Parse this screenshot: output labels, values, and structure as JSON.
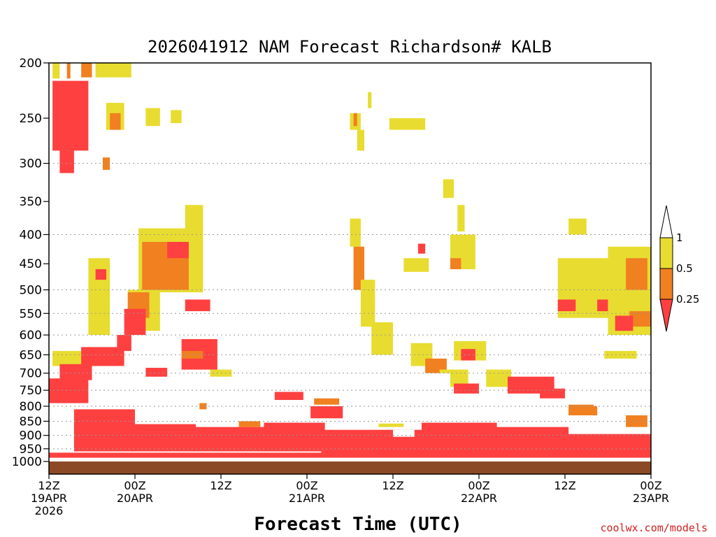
{
  "chart_data": {
    "type": "heatmap",
    "title": "2026041912 NAM Forecast Richardson# KALB",
    "xlabel": "Forecast Time (UTC)",
    "ylabel": "",
    "credit": "coolwx.com/models",
    "y_scale": "log-pressure",
    "ylim": [
      1000,
      200
    ],
    "y_ticks": [
      200,
      250,
      300,
      350,
      400,
      450,
      500,
      550,
      600,
      650,
      700,
      750,
      800,
      850,
      900,
      950,
      1000
    ],
    "grid_levels": [
      300,
      400,
      500,
      550,
      600,
      650,
      700,
      750,
      800,
      850,
      900,
      950
    ],
    "xlim_hours": [
      0,
      84
    ],
    "x_ticks": [
      {
        "hour": 0,
        "line1": "12Z",
        "line2": "19APR",
        "line3": "2026"
      },
      {
        "hour": 12,
        "line1": "00Z",
        "line2": "20APR",
        "line3": ""
      },
      {
        "hour": 24,
        "line1": "12Z",
        "line2": "",
        "line3": ""
      },
      {
        "hour": 36,
        "line1": "00Z",
        "line2": "21APR",
        "line3": ""
      },
      {
        "hour": 48,
        "line1": "12Z",
        "line2": "",
        "line3": ""
      },
      {
        "hour": 60,
        "line1": "00Z",
        "line2": "22APR",
        "line3": ""
      },
      {
        "hour": 72,
        "line1": "12Z",
        "line2": "",
        "line3": ""
      },
      {
        "hour": 84,
        "line1": "00Z",
        "line2": "23APR",
        "line3": ""
      }
    ],
    "legend": {
      "placement": "right",
      "thresholds": [
        "1",
        "0.5",
        "0.25"
      ],
      "colors": {
        "below_025": "#ff4040",
        "band_025_05": "#f08020",
        "band_05_1": "#e8dc30",
        "above_1": "#ffffff"
      }
    },
    "surface_color": "#8b4a25",
    "regions": [
      {
        "h0": 0.5,
        "h1": 5.5,
        "p0": 215,
        "p1": 285,
        "cls": "r"
      },
      {
        "h0": 1.5,
        "h1": 3.5,
        "p0": 285,
        "p1": 312,
        "cls": "r"
      },
      {
        "h0": 0.5,
        "h1": 1.5,
        "p0": 200,
        "p1": 213,
        "cls": "y"
      },
      {
        "h0": 2.5,
        "h1": 3.0,
        "p0": 200,
        "p1": 213,
        "cls": "o"
      },
      {
        "h0": 4.5,
        "h1": 6.0,
        "p0": 200,
        "p1": 212,
        "cls": "o"
      },
      {
        "h0": 6.5,
        "h1": 11.5,
        "p0": 200,
        "p1": 212,
        "cls": "y"
      },
      {
        "h0": 8.0,
        "h1": 10.5,
        "p0": 235,
        "p1": 262,
        "cls": "y"
      },
      {
        "h0": 8.5,
        "h1": 10.0,
        "p0": 245,
        "p1": 262,
        "cls": "o"
      },
      {
        "h0": 13.5,
        "h1": 15.5,
        "p0": 240,
        "p1": 258,
        "cls": "y"
      },
      {
        "h0": 17.0,
        "h1": 18.5,
        "p0": 242,
        "p1": 255,
        "cls": "y"
      },
      {
        "h0": 7.5,
        "h1": 8.5,
        "p0": 293,
        "p1": 308,
        "cls": "o"
      },
      {
        "h0": 19.0,
        "h1": 21.5,
        "p0": 355,
        "p1": 400,
        "cls": "y"
      },
      {
        "h0": 12.5,
        "h1": 21.5,
        "p0": 390,
        "p1": 505,
        "cls": "y"
      },
      {
        "h0": 13.0,
        "h1": 19.5,
        "p0": 412,
        "p1": 500,
        "cls": "o"
      },
      {
        "h0": 16.5,
        "h1": 19.5,
        "p0": 412,
        "p1": 440,
        "cls": "r"
      },
      {
        "h0": 11.0,
        "h1": 15.5,
        "p0": 500,
        "p1": 590,
        "cls": "y"
      },
      {
        "h0": 11.0,
        "h1": 14.0,
        "p0": 505,
        "p1": 560,
        "cls": "o"
      },
      {
        "h0": 10.5,
        "h1": 13.5,
        "p0": 540,
        "p1": 600,
        "cls": "r"
      },
      {
        "h0": 19.0,
        "h1": 22.5,
        "p0": 520,
        "p1": 545,
        "cls": "r"
      },
      {
        "h0": 5.5,
        "h1": 8.5,
        "p0": 440,
        "p1": 600,
        "cls": "y"
      },
      {
        "h0": 6.5,
        "h1": 8.0,
        "p0": 460,
        "p1": 480,
        "cls": "r"
      },
      {
        "h0": 0.5,
        "h1": 5.5,
        "p0": 640,
        "p1": 680,
        "cls": "y"
      },
      {
        "h0": 1.5,
        "h1": 6.0,
        "p0": 675,
        "p1": 720,
        "cls": "r"
      },
      {
        "h0": 4.5,
        "h1": 10.5,
        "p0": 630,
        "p1": 680,
        "cls": "r"
      },
      {
        "h0": 9.5,
        "h1": 11.5,
        "p0": 600,
        "p1": 640,
        "cls": "r"
      },
      {
        "h0": 0.0,
        "h1": 5.5,
        "p0": 715,
        "p1": 790,
        "cls": "r"
      },
      {
        "h0": 18.5,
        "h1": 23.5,
        "p0": 610,
        "p1": 690,
        "cls": "r"
      },
      {
        "h0": 18.5,
        "h1": 21.5,
        "p0": 640,
        "p1": 660,
        "cls": "o"
      },
      {
        "h0": 22.5,
        "h1": 25.5,
        "p0": 690,
        "p1": 710,
        "cls": "y"
      },
      {
        "h0": 13.5,
        "h1": 16.5,
        "p0": 685,
        "p1": 710,
        "cls": "r"
      },
      {
        "h0": 3.5,
        "h1": 12.0,
        "p0": 810,
        "p1": 960,
        "cls": "r"
      },
      {
        "h0": 11.5,
        "h1": 20.5,
        "p0": 860,
        "p1": 960,
        "cls": "r"
      },
      {
        "h0": 20.0,
        "h1": 30.5,
        "p0": 870,
        "p1": 960,
        "cls": "r"
      },
      {
        "h0": 30.0,
        "h1": 38.5,
        "p0": 855,
        "p1": 960,
        "cls": "r"
      },
      {
        "h0": 36.5,
        "h1": 41.0,
        "p0": 800,
        "p1": 840,
        "cls": "r"
      },
      {
        "h0": 37.0,
        "h1": 40.5,
        "p0": 775,
        "p1": 795,
        "cls": "o"
      },
      {
        "h0": 31.5,
        "h1": 35.5,
        "p0": 755,
        "p1": 780,
        "cls": "r"
      },
      {
        "h0": 38.0,
        "h1": 52.5,
        "p0": 880,
        "p1": 975,
        "cls": "r"
      },
      {
        "h0": 52.0,
        "h1": 62.5,
        "p0": 855,
        "p1": 975,
        "cls": "r"
      },
      {
        "h0": 62.0,
        "h1": 72.5,
        "p0": 870,
        "p1": 975,
        "cls": "r"
      },
      {
        "h0": 72.0,
        "h1": 84.0,
        "p0": 895,
        "p1": 975,
        "cls": "r"
      },
      {
        "h0": 0.0,
        "h1": 84.0,
        "p0": 965,
        "p1": 985,
        "cls": "r"
      },
      {
        "h0": 21.0,
        "h1": 26.0,
        "p0": 790,
        "p1": 810,
        "cls": "o"
      },
      {
        "h0": 26.5,
        "h1": 29.5,
        "p0": 840,
        "p1": 870,
        "cls": "o"
      },
      {
        "h0": 46.0,
        "h1": 49.5,
        "p0": 858,
        "p1": 870,
        "cls": "y"
      },
      {
        "h0": 66.0,
        "h1": 70.5,
        "p0": 820,
        "p1": 850,
        "cls": "r"
      },
      {
        "h0": 72.5,
        "h1": 76.5,
        "p0": 795,
        "p1": 830,
        "cls": "o"
      },
      {
        "h0": 80.5,
        "h1": 83.5,
        "p0": 830,
        "p1": 870,
        "cls": "o"
      },
      {
        "h0": 42.0,
        "h1": 43.5,
        "p0": 375,
        "p1": 420,
        "cls": "y"
      },
      {
        "h0": 42.5,
        "h1": 44.0,
        "p0": 420,
        "p1": 500,
        "cls": "o"
      },
      {
        "h0": 43.5,
        "h1": 45.5,
        "p0": 480,
        "p1": 580,
        "cls": "y"
      },
      {
        "h0": 45.0,
        "h1": 48.0,
        "p0": 570,
        "p1": 650,
        "cls": "y"
      },
      {
        "h0": 50.5,
        "h1": 53.5,
        "p0": 620,
        "p1": 680,
        "cls": "y"
      },
      {
        "h0": 52.5,
        "h1": 55.5,
        "p0": 660,
        "p1": 700,
        "cls": "o"
      },
      {
        "h0": 54.5,
        "h1": 58.5,
        "p0": 690,
        "p1": 740,
        "cls": "y"
      },
      {
        "h0": 56.5,
        "h1": 60.0,
        "p0": 730,
        "p1": 760,
        "cls": "r"
      },
      {
        "h0": 56.5,
        "h1": 61.0,
        "p0": 615,
        "p1": 665,
        "cls": "y"
      },
      {
        "h0": 57.5,
        "h1": 59.5,
        "p0": 635,
        "p1": 665,
        "cls": "r"
      },
      {
        "h0": 61.0,
        "h1": 64.5,
        "p0": 690,
        "p1": 740,
        "cls": "y"
      },
      {
        "h0": 64.0,
        "h1": 70.5,
        "p0": 710,
        "p1": 760,
        "cls": "r"
      },
      {
        "h0": 68.5,
        "h1": 72.0,
        "p0": 745,
        "p1": 775,
        "cls": "r"
      },
      {
        "h0": 47.5,
        "h1": 52.5,
        "p0": 250,
        "p1": 262,
        "cls": "y"
      },
      {
        "h0": 42.0,
        "h1": 43.5,
        "p0": 245,
        "p1": 262,
        "cls": "y"
      },
      {
        "h0": 42.5,
        "h1": 43.0,
        "p0": 245,
        "p1": 258,
        "cls": "o"
      },
      {
        "h0": 43.0,
        "h1": 44.0,
        "p0": 262,
        "p1": 285,
        "cls": "y"
      },
      {
        "h0": 44.5,
        "h1": 45.0,
        "p0": 225,
        "p1": 240,
        "cls": "y"
      },
      {
        "h0": 55.0,
        "h1": 56.5,
        "p0": 320,
        "p1": 345,
        "cls": "y"
      },
      {
        "h0": 57.0,
        "h1": 58.0,
        "p0": 355,
        "p1": 395,
        "cls": "y"
      },
      {
        "h0": 56.0,
        "h1": 59.5,
        "p0": 400,
        "p1": 460,
        "cls": "y"
      },
      {
        "h0": 56.0,
        "h1": 57.5,
        "p0": 440,
        "p1": 460,
        "cls": "o"
      },
      {
        "h0": 49.5,
        "h1": 53.0,
        "p0": 440,
        "p1": 465,
        "cls": "y"
      },
      {
        "h0": 51.5,
        "h1": 52.5,
        "p0": 415,
        "p1": 432,
        "cls": "r"
      },
      {
        "h0": 72.5,
        "h1": 75.0,
        "p0": 375,
        "p1": 400,
        "cls": "y"
      },
      {
        "h0": 71.0,
        "h1": 80.0,
        "p0": 440,
        "p1": 560,
        "cls": "y"
      },
      {
        "h0": 71.0,
        "h1": 73.5,
        "p0": 520,
        "p1": 545,
        "cls": "r"
      },
      {
        "h0": 76.5,
        "h1": 78.5,
        "p0": 520,
        "p1": 545,
        "cls": "r"
      },
      {
        "h0": 78.0,
        "h1": 84.0,
        "p0": 420,
        "p1": 600,
        "cls": "y"
      },
      {
        "h0": 80.5,
        "h1": 83.5,
        "p0": 440,
        "p1": 500,
        "cls": "o"
      },
      {
        "h0": 81.0,
        "h1": 84.0,
        "p0": 545,
        "p1": 580,
        "cls": "o"
      },
      {
        "h0": 79.0,
        "h1": 81.5,
        "p0": 555,
        "p1": 590,
        "cls": "r"
      },
      {
        "h0": 77.5,
        "h1": 82.0,
        "p0": 640,
        "p1": 660,
        "cls": "y"
      }
    ],
    "holes": [
      {
        "h0": 14.0,
        "h1": 20.0,
        "p0": 720,
        "p1": 845
      },
      {
        "h0": 22.0,
        "h1": 31.0,
        "p0": 770,
        "p1": 850
      },
      {
        "h0": 41.5,
        "h1": 56.0,
        "p0": 700,
        "p1": 850
      },
      {
        "h0": 48.0,
        "h1": 51.0,
        "p0": 880,
        "p1": 905
      },
      {
        "h0": 64.0,
        "h1": 72.0,
        "p0": 780,
        "p1": 850
      },
      {
        "h0": 76.0,
        "h1": 84.0,
        "p0": 700,
        "p1": 800
      }
    ]
  }
}
